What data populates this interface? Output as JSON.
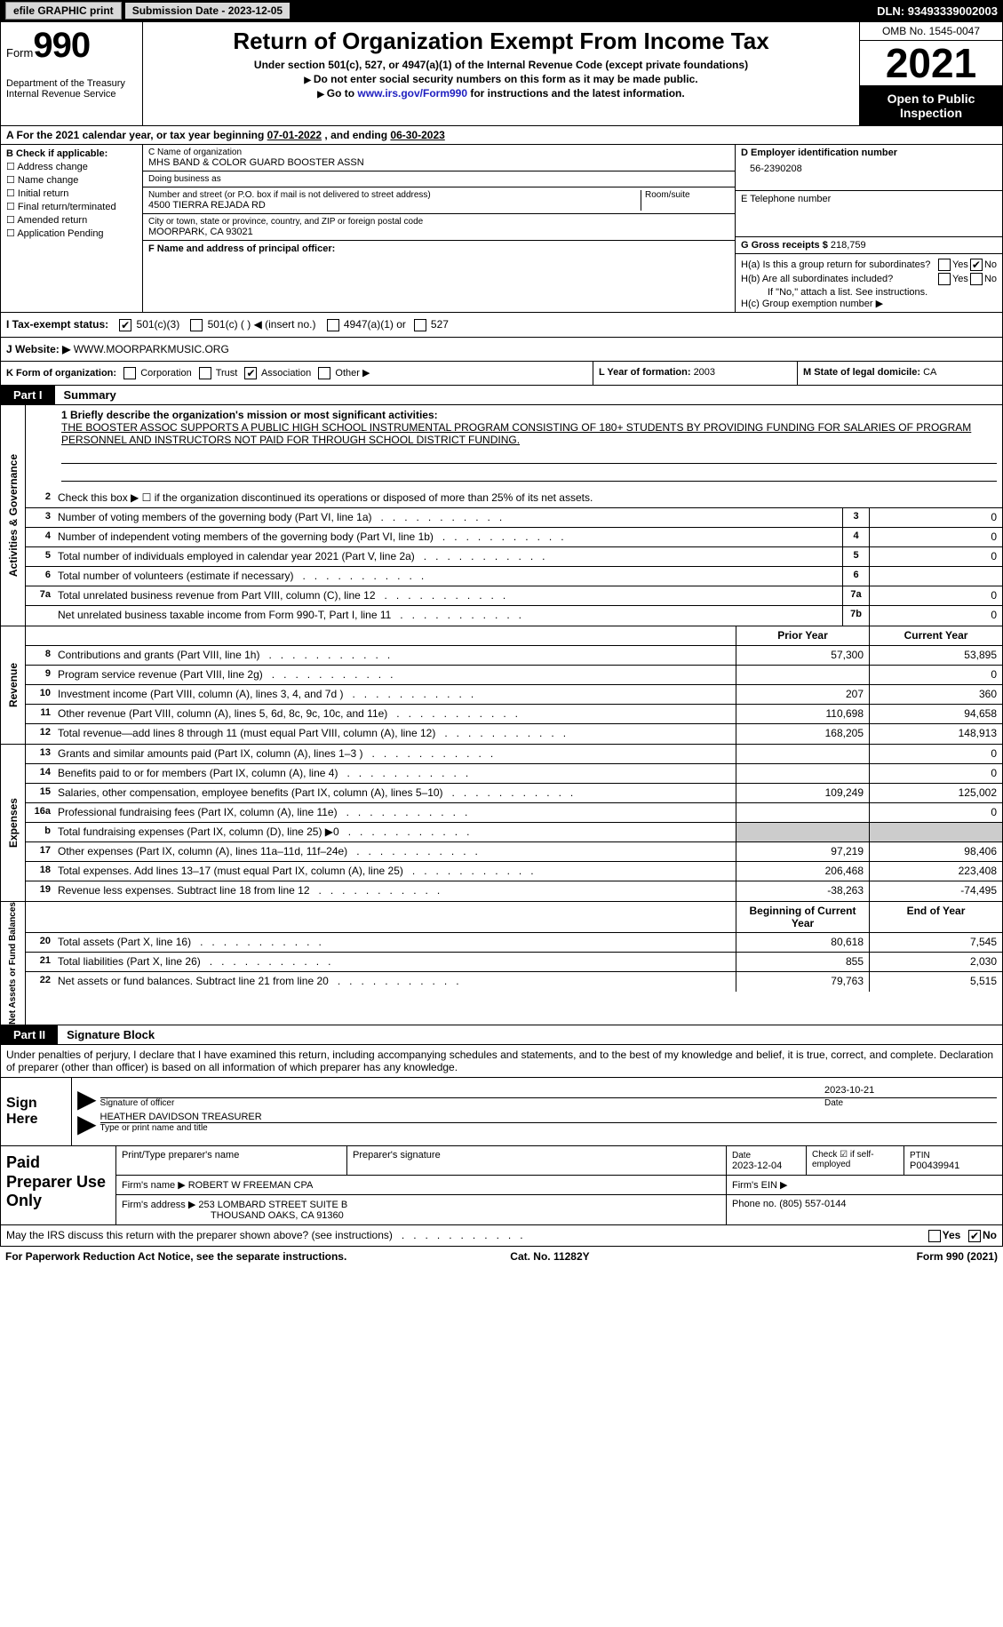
{
  "topbar": {
    "efile_btn": "efile GRAPHIC print",
    "sub_date_label": "Submission Date - ",
    "sub_date": "2023-12-05",
    "dln_label": "DLN: ",
    "dln": "93493339002003"
  },
  "header": {
    "form_word": "Form",
    "form_num": "990",
    "dept": "Department of the Treasury\nInternal Revenue Service",
    "title": "Return of Organization Exempt From Income Tax",
    "sub1": "Under section 501(c), 527, or 4947(a)(1) of the Internal Revenue Code (except private foundations)",
    "sub2": "Do not enter social security numbers on this form as it may be made public.",
    "sub3_pre": "Go to ",
    "sub3_link": "www.irs.gov/Form990",
    "sub3_post": " for instructions and the latest information.",
    "omb": "OMB No. 1545-0047",
    "year": "2021",
    "open": "Open to Public Inspection"
  },
  "period": {
    "label_a": "A For the 2021 calendar year, or tax year beginning ",
    "begin": "07-01-2022",
    "mid": "  , and ending ",
    "end": "06-30-2023"
  },
  "colB": {
    "heading": "B Check if applicable:",
    "opts": [
      "Address change",
      "Name change",
      "Initial return",
      "Final return/terminated",
      "Amended return",
      "Application Pending"
    ]
  },
  "colC": {
    "name_lbl": "C Name of organization",
    "name": "MHS BAND & COLOR GUARD BOOSTER ASSN",
    "dba_lbl": "Doing business as",
    "addr_lbl": "Number and street (or P.O. box if mail is not delivered to street address)",
    "room_lbl": "Room/suite",
    "addr": "4500 TIERRA REJADA RD",
    "city_lbl": "City or town, state or province, country, and ZIP or foreign postal code",
    "city": "MOORPARK, CA  93021",
    "f_lbl": "F Name and address of principal officer:"
  },
  "colD": {
    "ein_lbl": "D Employer identification number",
    "ein": "56-2390208",
    "tel_lbl": "E Telephone number",
    "gross_lbl": "G Gross receipts $ ",
    "gross": "218,759"
  },
  "rowH": {
    "ha": "H(a)  Is this a group return for subordinates?",
    "hb": "H(b)  Are all subordinates included?",
    "hnote": "If \"No,\" attach a list. See instructions.",
    "hc": "H(c)  Group exemption number ▶",
    "yes": "Yes",
    "no": "No"
  },
  "rowI": {
    "lbl": "I   Tax-exempt status:",
    "o1": "501(c)(3)",
    "o2": "501(c) (  ) ◀ (insert no.)",
    "o3": "4947(a)(1) or",
    "o4": "527"
  },
  "rowJ": {
    "lbl": "J   Website: ▶ ",
    "val": "WWW.MOORPARKMUSIC.ORG"
  },
  "rowK": {
    "lbl": "K Form of organization:",
    "opts": [
      "Corporation",
      "Trust",
      "Association",
      "Other ▶"
    ],
    "checked_idx": 2
  },
  "rowL": {
    "lbl": "L Year of formation: ",
    "val": "2003"
  },
  "rowM": {
    "lbl": "M State of legal domicile: ",
    "val": "CA"
  },
  "partI": {
    "tab": "Part I",
    "title": "Summary"
  },
  "mission": {
    "lbl": "1   Briefly describe the organization's mission or most significant activities:",
    "text": "THE BOOSTER ASSOC SUPPORTS A PUBLIC HIGH SCHOOL INSTRUMENTAL PROGRAM CONSISTING OF 180+ STUDENTS BY PROVIDING FUNDING FOR SALARIES OF PROGRAM PERSONNEL AND INSTRUCTORS NOT PAID FOR THROUGH SCHOOL DISTRICT FUNDING."
  },
  "summary": {
    "a_label": "Activities & Governance",
    "r2": "Check this box ▶ ☐ if the organization discontinued its operations or disposed of more than 25% of its net assets.",
    "rows_ag": [
      {
        "n": "3",
        "d": "Number of voting members of the governing body (Part VI, line 1a)",
        "box": "3",
        "v": "0"
      },
      {
        "n": "4",
        "d": "Number of independent voting members of the governing body (Part VI, line 1b)",
        "box": "4",
        "v": "0"
      },
      {
        "n": "5",
        "d": "Total number of individuals employed in calendar year 2021 (Part V, line 2a)",
        "box": "5",
        "v": "0"
      },
      {
        "n": "6",
        "d": "Total number of volunteers (estimate if necessary)",
        "box": "6",
        "v": ""
      },
      {
        "n": "7a",
        "d": "Total unrelated business revenue from Part VIII, column (C), line 12",
        "box": "7a",
        "v": "0"
      },
      {
        "n": "",
        "d": "Net unrelated business taxable income from Form 990-T, Part I, line 11",
        "box": "7b",
        "v": "0"
      }
    ],
    "hdr_prior": "Prior Year",
    "hdr_curr": "Current Year",
    "rev_label": "Revenue",
    "rows_rev": [
      {
        "n": "8",
        "d": "Contributions and grants (Part VIII, line 1h)",
        "p": "57,300",
        "c": "53,895"
      },
      {
        "n": "9",
        "d": "Program service revenue (Part VIII, line 2g)",
        "p": "",
        "c": "0"
      },
      {
        "n": "10",
        "d": "Investment income (Part VIII, column (A), lines 3, 4, and 7d )",
        "p": "207",
        "c": "360"
      },
      {
        "n": "11",
        "d": "Other revenue (Part VIII, column (A), lines 5, 6d, 8c, 9c, 10c, and 11e)",
        "p": "110,698",
        "c": "94,658"
      },
      {
        "n": "12",
        "d": "Total revenue—add lines 8 through 11 (must equal Part VIII, column (A), line 12)",
        "p": "168,205",
        "c": "148,913"
      }
    ],
    "exp_label": "Expenses",
    "rows_exp": [
      {
        "n": "13",
        "d": "Grants and similar amounts paid (Part IX, column (A), lines 1–3 )",
        "p": "",
        "c": "0"
      },
      {
        "n": "14",
        "d": "Benefits paid to or for members (Part IX, column (A), line 4)",
        "p": "",
        "c": "0"
      },
      {
        "n": "15",
        "d": "Salaries, other compensation, employee benefits (Part IX, column (A), lines 5–10)",
        "p": "109,249",
        "c": "125,002"
      },
      {
        "n": "16a",
        "d": "Professional fundraising fees (Part IX, column (A), line 11e)",
        "p": "",
        "c": "0"
      },
      {
        "n": "b",
        "d": "Total fundraising expenses (Part IX, column (D), line 25) ▶0",
        "p": "shade",
        "c": "shade"
      },
      {
        "n": "17",
        "d": "Other expenses (Part IX, column (A), lines 11a–11d, 11f–24e)",
        "p": "97,219",
        "c": "98,406"
      },
      {
        "n": "18",
        "d": "Total expenses. Add lines 13–17 (must equal Part IX, column (A), line 25)",
        "p": "206,468",
        "c": "223,408"
      },
      {
        "n": "19",
        "d": "Revenue less expenses. Subtract line 18 from line 12",
        "p": "-38,263",
        "c": "-74,495"
      }
    ],
    "na_label": "Net Assets or Fund Balances",
    "hdr_begin": "Beginning of Current Year",
    "hdr_end": "End of Year",
    "rows_na": [
      {
        "n": "20",
        "d": "Total assets (Part X, line 16)",
        "p": "80,618",
        "c": "7,545"
      },
      {
        "n": "21",
        "d": "Total liabilities (Part X, line 26)",
        "p": "855",
        "c": "2,030"
      },
      {
        "n": "22",
        "d": "Net assets or fund balances. Subtract line 21 from line 20",
        "p": "79,763",
        "c": "5,515"
      }
    ]
  },
  "partII": {
    "tab": "Part II",
    "title": "Signature Block"
  },
  "sig": {
    "decl": "Under penalties of perjury, I declare that I have examined this return, including accompanying schedules and statements, and to the best of my knowledge and belief, it is true, correct, and complete. Declaration of preparer (other than officer) is based on all information of which preparer has any knowledge.",
    "sign_here": "Sign Here",
    "sig_officer": "Signature of officer",
    "sig_date": "2023-10-21",
    "date_lbl": "Date",
    "name": "HEATHER DAVIDSON  TREASURER",
    "name_lbl": "Type or print name and title"
  },
  "prep": {
    "title": "Paid Preparer Use Only",
    "h1": "Print/Type preparer's name",
    "h2": "Preparer's signature",
    "h3_lbl": "Date",
    "h3": "2023-12-04",
    "h4": "Check ☑ if self-employed",
    "h5_lbl": "PTIN",
    "h5": "P00439941",
    "firm_name_lbl": "Firm's name     ▶ ",
    "firm_name": "ROBERT W FREEMAN CPA",
    "firm_ein_lbl": "Firm's EIN ▶",
    "firm_addr_lbl": "Firm's address ▶ ",
    "firm_addr1": "253 LOMBARD STREET SUITE B",
    "firm_addr2": "THOUSAND OAKS, CA  91360",
    "phone_lbl": "Phone no. ",
    "phone": "(805) 557-0144"
  },
  "footer": {
    "discuss": "May the IRS discuss this return with the preparer shown above? (see instructions)",
    "yes": "Yes",
    "no": "No",
    "paperwork": "For Paperwork Reduction Act Notice, see the separate instructions.",
    "cat": "Cat. No. 11282Y",
    "form": "Form 990 (2021)"
  }
}
